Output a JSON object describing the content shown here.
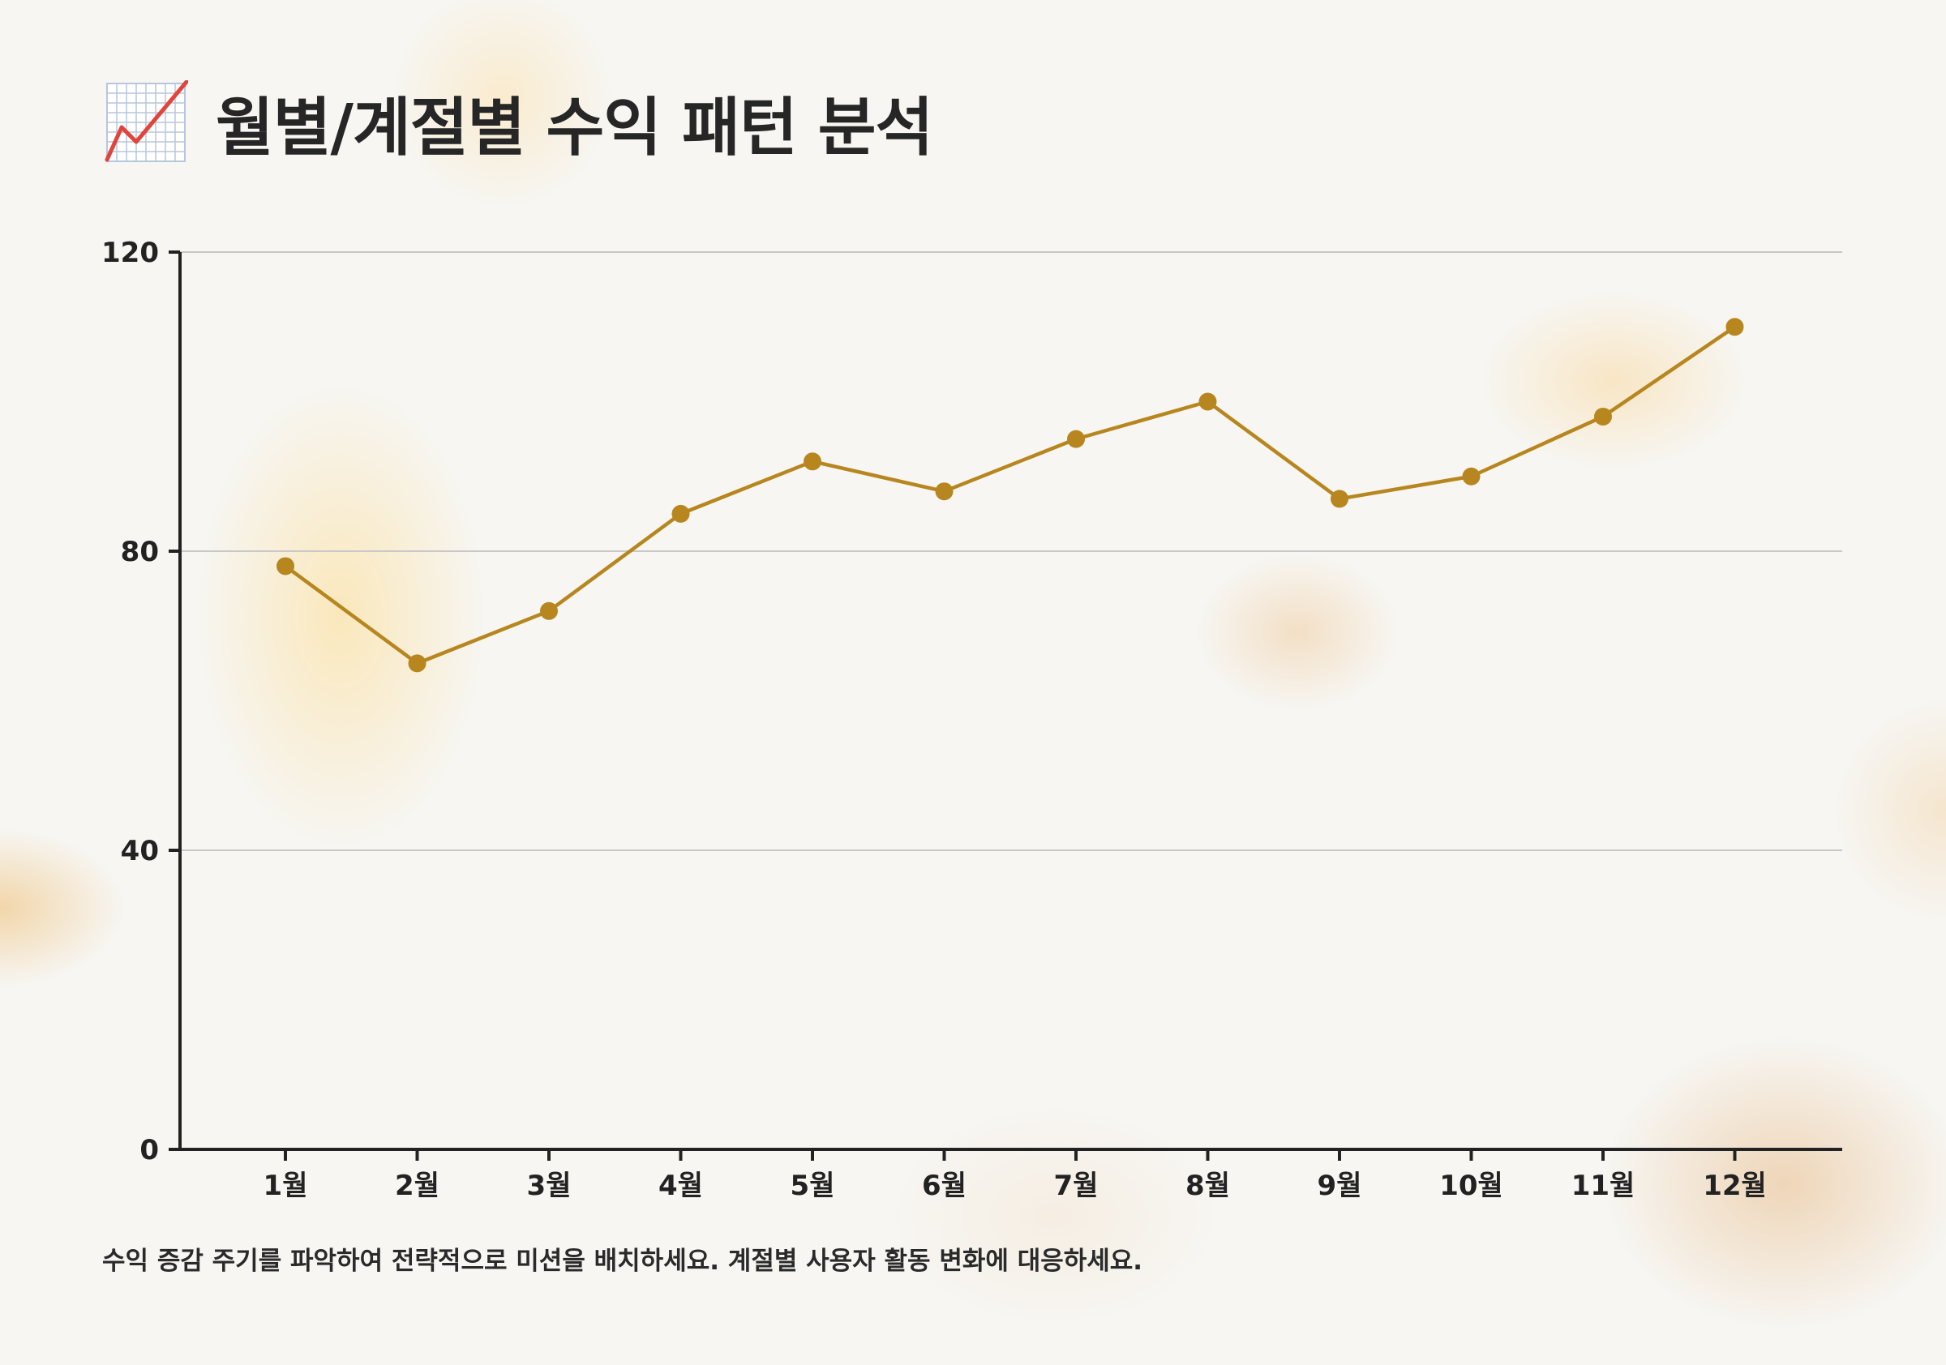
{
  "title": "월별/계절별 수익 패턴 분석",
  "title_icon": "chart-increasing-icon",
  "footnote": "수익 증감 주기를 파악하여 전략적으로 미션을 배치하세요. 계절별 사용자 활동 변화에 대응하세요.",
  "colors": {
    "line": "#b8861f",
    "axis": "#222222",
    "grid": "#c8c8c8",
    "icon_line": "#e0443a",
    "icon_grid": "#b7c6dc"
  },
  "chart_data": {
    "type": "line",
    "categories": [
      "1월",
      "2월",
      "3월",
      "4월",
      "5월",
      "6월",
      "7월",
      "8월",
      "9월",
      "10월",
      "11월",
      "12월"
    ],
    "series": [
      {
        "values": [
          78,
          65,
          72,
          85,
          92,
          88,
          95,
          100,
          87,
          90,
          98,
          110
        ]
      }
    ],
    "ylim": [
      0,
      120
    ],
    "yticks": [
      0,
      40,
      80,
      120
    ],
    "grid": true,
    "xlabel": "",
    "ylabel": ""
  }
}
